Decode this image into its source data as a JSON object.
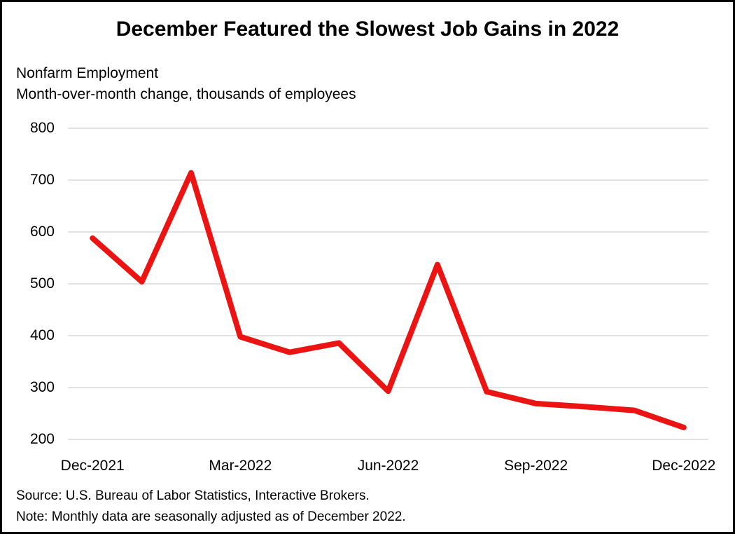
{
  "chart_data": {
    "type": "line",
    "title": "December Featured the Slowest Job Gains in 2022",
    "subtitle_line1": "Nonfarm Employment",
    "subtitle_line2": "Month-over-month change, thousands of employees",
    "categories": [
      "Dec-2021",
      "Jan-2022",
      "Feb-2022",
      "Mar-2022",
      "Apr-2022",
      "May-2022",
      "Jun-2022",
      "Jul-2022",
      "Aug-2022",
      "Sep-2022",
      "Oct-2022",
      "Nov-2022",
      "Dec-2022"
    ],
    "values": [
      588,
      504,
      714,
      398,
      368,
      386,
      293,
      537,
      292,
      269,
      263,
      256,
      223
    ],
    "x_tick_labels": [
      "Dec-2021",
      "Mar-2022",
      "Jun-2022",
      "Sep-2022",
      "Dec-2022"
    ],
    "x_tick_indices": [
      0,
      3,
      6,
      9,
      12
    ],
    "y_ticks": [
      800,
      700,
      600,
      500,
      400,
      300,
      200
    ],
    "ylim": [
      200,
      800
    ],
    "grid": true,
    "legend": "none",
    "line_color": "#ec1313",
    "gridline_color": "#d9d9d9",
    "text_color": "#000000",
    "source_note": "Source: U.S. Bureau of Labor Statistics, Interactive Brokers.",
    "note": "Note: Monthly data are seasonally adjusted as of December 2022."
  }
}
